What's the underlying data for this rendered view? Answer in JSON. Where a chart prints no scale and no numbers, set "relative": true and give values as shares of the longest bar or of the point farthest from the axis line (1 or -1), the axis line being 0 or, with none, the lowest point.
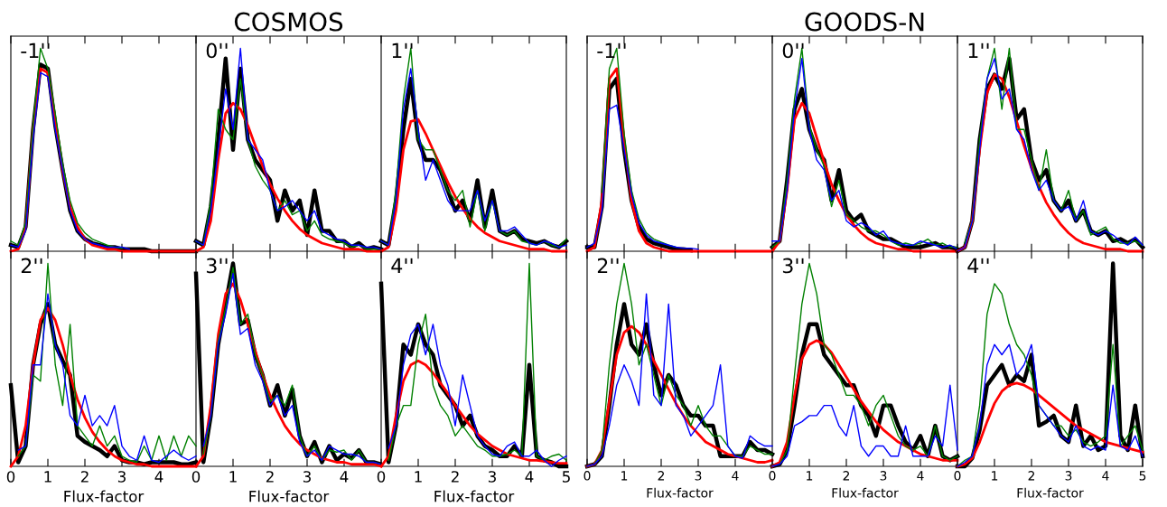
{
  "chart_data": [
    {
      "type": "line",
      "relative": true,
      "annotations": [
        "-1''"
      ],
      "tick_labels": false,
      "xlim": [
        0,
        5
      ],
      "xticks": [
        0,
        1,
        2,
        3,
        4
      ],
      "x": [
        0,
        0.2,
        0.4,
        0.6,
        0.8,
        1.0,
        1.2,
        1.4,
        1.6,
        1.8,
        2.0,
        2.2,
        2.4,
        2.6,
        2.8,
        3.0,
        3.2,
        3.4,
        3.6,
        3.8,
        4.0,
        4.2,
        4.4,
        4.6,
        4.8,
        5.0
      ],
      "series": [
        {
          "color": "#008000",
          "values": [
            0.05,
            0.03,
            0.14,
            0.62,
            1.0,
            0.9,
            0.68,
            0.43,
            0.25,
            0.14,
            0.09,
            0.06,
            0.045,
            0.03,
            0.02,
            0.015,
            null,
            null,
            null,
            null,
            null,
            null,
            null,
            null,
            null,
            null
          ]
        },
        {
          "color": "#0000ff",
          "values": [
            0.03,
            0.02,
            0.1,
            0.55,
            0.88,
            0.86,
            0.6,
            0.4,
            0.2,
            0.1,
            0.06,
            0.04,
            0.03,
            0.02,
            0.02,
            0.02,
            0.01,
            null,
            null,
            null,
            null,
            null,
            null,
            null,
            null,
            null
          ]
        },
        {
          "color": "#000000",
          "values": [
            0.03,
            0.02,
            0.12,
            0.6,
            0.92,
            0.9,
            0.62,
            0.4,
            0.2,
            0.1,
            0.06,
            0.04,
            0.03,
            0.02,
            0.02,
            0.01,
            0.01,
            0.01,
            0.01,
            0,
            0,
            0,
            0,
            0,
            0,
            0
          ]
        },
        {
          "color": "#ff0000",
          "values": [
            0,
            0.01,
            0.12,
            0.6,
            0.9,
            0.88,
            0.65,
            0.4,
            0.22,
            0.12,
            0.06,
            0.03,
            0.02,
            0.01,
            0.01,
            0,
            0,
            0,
            0,
            0,
            0,
            0,
            0,
            0,
            0,
            0
          ]
        }
      ]
    },
    {
      "type": "line",
      "relative": true,
      "title": "COSMOS",
      "annotations": [
        "0''"
      ],
      "tick_labels": false,
      "xlim": [
        0,
        5
      ],
      "xticks": [
        0,
        1,
        2,
        3,
        4
      ],
      "x": [
        0,
        0.2,
        0.4,
        0.6,
        0.8,
        1.0,
        1.2,
        1.4,
        1.6,
        1.8,
        2.0,
        2.2,
        2.4,
        2.6,
        2.8,
        3.0,
        3.2,
        3.4,
        3.6,
        3.8,
        4.0,
        4.2,
        4.4,
        4.6,
        4.8,
        5.0
      ],
      "series": [
        {
          "color": "#008000",
          "values": [
            0.05,
            0.03,
            0.25,
            0.7,
            0.6,
            0.55,
            0.85,
            0.55,
            0.42,
            0.35,
            0.3,
            0.2,
            0.25,
            0.18,
            0.2,
            0.1,
            0.15,
            0.08,
            0.06,
            0.05,
            0.04,
            0.02,
            0.03,
            0.01,
            0.01,
            0.01
          ]
        },
        {
          "color": "#0000ff",
          "values": [
            0.05,
            0.03,
            0.2,
            0.5,
            0.8,
            0.6,
            1.0,
            0.55,
            0.5,
            0.45,
            0.3,
            0.2,
            0.22,
            0.25,
            0.2,
            0.15,
            0.2,
            0.1,
            0.08,
            0.06,
            0.05,
            0.03,
            0.03,
            0.02,
            0.02,
            0.01
          ]
        },
        {
          "color": "#000000",
          "values": [
            0.05,
            0.03,
            0.22,
            0.55,
            0.95,
            0.5,
            0.9,
            0.55,
            0.45,
            0.4,
            0.35,
            0.15,
            0.3,
            0.2,
            0.25,
            0.08,
            0.3,
            0.1,
            0.1,
            0.05,
            0.05,
            0.02,
            0.04,
            0.01,
            0.02,
            0.01
          ]
        },
        {
          "color": "#ff0000",
          "values": [
            0,
            0.02,
            0.15,
            0.45,
            0.68,
            0.73,
            0.7,
            0.62,
            0.52,
            0.42,
            0.33,
            0.26,
            0.2,
            0.15,
            0.11,
            0.08,
            0.06,
            0.04,
            0.03,
            0.02,
            0.01,
            0.01,
            0.01,
            0,
            0,
            0
          ]
        }
      ]
    },
    {
      "type": "line",
      "relative": true,
      "annotations": [
        "1''"
      ],
      "tick_labels": false,
      "xlim": [
        0,
        5
      ],
      "xticks": [
        0,
        1,
        2,
        3,
        4,
        5
      ],
      "x": [
        0,
        0.2,
        0.4,
        0.6,
        0.8,
        1.0,
        1.2,
        1.4,
        1.6,
        1.8,
        2.0,
        2.2,
        2.4,
        2.6,
        2.8,
        3.0,
        3.2,
        3.4,
        3.6,
        3.8,
        4.0,
        4.2,
        4.4,
        4.6,
        4.8,
        5.0
      ],
      "series": [
        {
          "color": "#008000",
          "values": [
            0.05,
            0.03,
            0.3,
            0.75,
            1.0,
            0.55,
            0.5,
            0.5,
            0.4,
            0.3,
            0.25,
            0.3,
            0.12,
            0.3,
            0.1,
            0.25,
            0.1,
            0.08,
            0.1,
            0.05,
            0.04,
            0.03,
            0.05,
            0.03,
            0.02,
            0.06
          ]
        },
        {
          "color": "#0000ff",
          "values": [
            0.05,
            0.03,
            0.25,
            0.7,
            0.9,
            0.6,
            0.35,
            0.45,
            0.35,
            0.25,
            0.2,
            0.2,
            0.2,
            0.3,
            0.15,
            0.25,
            0.1,
            0.1,
            0.12,
            0.08,
            0.04,
            0.03,
            0.05,
            0.04,
            0.02,
            0.03
          ]
        },
        {
          "color": "#000000",
          "values": [
            0.05,
            0.03,
            0.25,
            0.6,
            0.85,
            0.55,
            0.45,
            0.45,
            0.4,
            0.3,
            0.2,
            0.25,
            0.15,
            0.35,
            0.12,
            0.3,
            0.1,
            0.08,
            0.1,
            0.06,
            0.05,
            0.04,
            0.05,
            0.03,
            0.02,
            0.05
          ]
        },
        {
          "color": "#ff0000",
          "values": [
            0,
            0.02,
            0.2,
            0.5,
            0.64,
            0.65,
            0.58,
            0.5,
            0.42,
            0.34,
            0.27,
            0.21,
            0.16,
            0.12,
            0.09,
            0.07,
            0.05,
            0.04,
            0.03,
            0.02,
            0.01,
            0.01,
            0.01,
            0,
            0,
            0
          ]
        }
      ]
    },
    {
      "type": "line",
      "relative": true,
      "annotations": [
        "2''"
      ],
      "tick_labels": "x",
      "xlabel": "Flux-factor",
      "xlim": [
        0,
        5
      ],
      "xticks": [
        0,
        1,
        2,
        3,
        4
      ],
      "x": [
        0,
        0.2,
        0.4,
        0.6,
        0.8,
        1.0,
        1.2,
        1.4,
        1.6,
        1.8,
        2.0,
        2.2,
        2.4,
        2.6,
        2.8,
        3.0,
        3.2,
        3.4,
        3.6,
        3.8,
        4.0,
        4.2,
        4.4,
        4.6,
        4.8,
        5.0
      ],
      "series": [
        {
          "color": "#008000",
          "values": [
            null,
            0.05,
            0.1,
            0.45,
            0.42,
            1.0,
            0.5,
            0.3,
            0.7,
            0.2,
            0.15,
            0.1,
            0.2,
            0.1,
            0.15,
            0.05,
            0.03,
            0.02,
            0.1,
            0.03,
            0.15,
            0.03,
            0.15,
            0.05,
            0.15,
            0.1
          ]
        },
        {
          "color": "#0000ff",
          "values": [
            null,
            0.08,
            0.1,
            0.5,
            0.5,
            0.85,
            0.6,
            0.5,
            0.25,
            0.2,
            0.35,
            0.2,
            0.25,
            0.2,
            0.3,
            0.1,
            0.05,
            0.03,
            0.15,
            0.03,
            0.02,
            0.05,
            0.08,
            0.05,
            0.03,
            0.05
          ]
        },
        {
          "color": "#000000",
          "values": [
            0.4,
            0.02,
            0.1,
            0.5,
            0.7,
            0.8,
            0.6,
            0.52,
            0.45,
            0.15,
            0.12,
            0.1,
            0.08,
            0.05,
            0.1,
            0.03,
            0.02,
            0.02,
            0.01,
            0.02,
            0.02,
            0.02,
            0.02,
            0.01,
            0.01,
            0.02
          ]
        },
        {
          "color": "#ff0000",
          "values": [
            0,
            0.05,
            0.2,
            0.5,
            0.72,
            0.78,
            0.72,
            0.6,
            0.45,
            0.33,
            0.24,
            0.17,
            0.12,
            0.08,
            0.05,
            0.03,
            0.02,
            0.01,
            0.01,
            0,
            0,
            0,
            0,
            0,
            0,
            0
          ]
        }
      ]
    },
    {
      "type": "line",
      "relative": true,
      "annotations": [
        "3''"
      ],
      "tick_labels": "x",
      "xlabel": "Flux-factor",
      "xlim": [
        0,
        5
      ],
      "xticks": [
        0,
        1,
        2,
        3,
        4
      ],
      "x": [
        0,
        0.2,
        0.4,
        0.6,
        0.8,
        1.0,
        1.2,
        1.4,
        1.6,
        1.8,
        2.0,
        2.2,
        2.4,
        2.6,
        2.8,
        3.0,
        3.2,
        3.4,
        3.6,
        3.8,
        4.0,
        4.2,
        4.4,
        4.6,
        4.8,
        5.0
      ],
      "series": [
        {
          "color": "#008000",
          "values": [
            null,
            0.06,
            0.25,
            0.62,
            0.78,
            0.98,
            0.7,
            0.75,
            0.55,
            0.45,
            0.32,
            0.35,
            0.3,
            0.4,
            0.15,
            0.05,
            0.1,
            0.03,
            0.08,
            0.07,
            0.08,
            0.03,
            0.08,
            0.02,
            0.02,
            0.01
          ]
        },
        {
          "color": "#0000ff",
          "values": [
            null,
            0.1,
            0.25,
            0.6,
            0.75,
            0.95,
            0.65,
            0.68,
            0.5,
            0.42,
            0.3,
            0.35,
            0.25,
            0.3,
            0.12,
            0.05,
            0.08,
            0.03,
            0.1,
            0.08,
            0.06,
            0.06,
            0.05,
            0.02,
            0.02,
            0.01
          ]
        },
        {
          "color": "#000000",
          "values": [
            0.95,
            0.02,
            0.25,
            0.6,
            0.8,
            1.0,
            0.7,
            0.72,
            0.55,
            0.45,
            0.3,
            0.4,
            0.25,
            0.38,
            0.15,
            0.05,
            0.12,
            0.02,
            0.1,
            0.03,
            0.06,
            0.04,
            0.08,
            0.02,
            0.02,
            0.01
          ]
        },
        {
          "color": "#ff0000",
          "values": [
            0,
            0.05,
            0.3,
            0.65,
            0.85,
            0.9,
            0.82,
            0.7,
            0.57,
            0.45,
            0.35,
            0.27,
            0.2,
            0.15,
            0.11,
            0.08,
            0.06,
            0.04,
            0.03,
            0.02,
            0.02,
            0.01,
            0.01,
            0.01,
            0.01,
            0
          ]
        }
      ]
    },
    {
      "type": "line",
      "relative": true,
      "annotations": [
        "4''"
      ],
      "tick_labels": "x",
      "xlabel": "Flux-factor",
      "xlim": [
        0,
        5
      ],
      "xticks": [
        0,
        1,
        2,
        3,
        4,
        5
      ],
      "x": [
        0,
        0.2,
        0.4,
        0.6,
        0.8,
        1.0,
        1.2,
        1.4,
        1.6,
        1.8,
        2.0,
        2.2,
        2.4,
        2.6,
        2.8,
        3.0,
        3.2,
        3.4,
        3.6,
        3.8,
        4.0,
        4.2,
        4.4,
        4.6,
        4.8,
        5.0
      ],
      "series": [
        {
          "color": "#008000",
          "values": [
            null,
            0.03,
            0.2,
            0.3,
            0.3,
            0.6,
            0.75,
            0.4,
            0.3,
            0.25,
            0.15,
            0.2,
            0.15,
            0.1,
            0.08,
            0.05,
            0.05,
            0.06,
            0.08,
            0.05,
            1.0,
            0.05,
            0.03,
            0.05,
            0.06,
            0.03
          ]
        },
        {
          "color": "#0000ff",
          "values": [
            null,
            0.09,
            0.2,
            0.5,
            0.65,
            0.7,
            0.55,
            0.7,
            0.5,
            0.4,
            0.2,
            0.45,
            0.3,
            0.15,
            0.1,
            0.06,
            0.05,
            0.1,
            0.12,
            0.05,
            0.05,
            0.08,
            0.03,
            0.0,
            0.03,
            0.05
          ]
        },
        {
          "color": "#000000",
          "values": [
            0.9,
            0.02,
            0.2,
            0.6,
            0.55,
            0.7,
            0.6,
            0.55,
            0.4,
            0.35,
            0.3,
            0.2,
            0.25,
            0.15,
            0.1,
            0.08,
            0.05,
            0.05,
            0.1,
            0.05,
            0.5,
            0.05,
            0.03,
            0.02,
            0.0,
            0.0
          ]
        },
        {
          "color": "#ff0000",
          "values": [
            0,
            0.05,
            0.25,
            0.42,
            0.5,
            0.52,
            0.5,
            0.46,
            0.41,
            0.36,
            0.3,
            0.25,
            0.2,
            0.16,
            0.13,
            0.1,
            0.08,
            0.06,
            0.05,
            0.04,
            0.03,
            0.03,
            0.025,
            0.02,
            0.015,
            0.015
          ]
        }
      ]
    },
    {
      "type": "line",
      "relative": true,
      "annotations": [
        "-1''"
      ],
      "tick_labels": false,
      "xlim": [
        0,
        5
      ],
      "xticks": [
        0,
        1,
        2,
        3,
        4
      ],
      "x": [
        0,
        0.2,
        0.4,
        0.6,
        0.8,
        1.0,
        1.2,
        1.4,
        1.6,
        1.8,
        2.0,
        2.2,
        2.4,
        2.6,
        2.8,
        3.0,
        3.2,
        3.4,
        3.6,
        3.8,
        4.0,
        4.2,
        4.4,
        4.6,
        4.8,
        5.0
      ],
      "series": [
        {
          "color": "#008000",
          "values": [
            null,
            null,
            0.29,
            0.9,
            1.0,
            0.58,
            0.3,
            0.16,
            0.09,
            0.06,
            0.045,
            0.03,
            0.02,
            null,
            null,
            null,
            null,
            null,
            null,
            null,
            null,
            null,
            null,
            null,
            null,
            null
          ]
        },
        {
          "color": "#0000ff",
          "values": [
            0.02,
            0.04,
            0.2,
            0.7,
            0.72,
            0.5,
            0.28,
            0.14,
            0.08,
            0.05,
            0.04,
            0.03,
            0.02,
            0.015,
            0.015,
            0.01,
            null,
            null,
            null,
            null,
            null,
            null,
            null,
            null,
            null,
            null
          ]
        },
        {
          "color": "#000000",
          "values": [
            0.02,
            0.02,
            0.22,
            0.8,
            0.85,
            0.5,
            0.25,
            0.12,
            0.06,
            0.04,
            0.03,
            0.02,
            0.01,
            0.01,
            0.005,
            null,
            null,
            null,
            null,
            null,
            null,
            null,
            null,
            null,
            null,
            null
          ]
        },
        {
          "color": "#ff0000",
          "values": [
            0,
            0.02,
            0.25,
            0.85,
            0.9,
            0.55,
            0.25,
            0.1,
            0.04,
            0.02,
            0.01,
            0,
            0,
            0,
            0,
            0,
            0,
            0,
            0,
            0,
            0,
            0,
            0,
            0,
            0,
            0
          ]
        }
      ]
    },
    {
      "type": "line",
      "relative": true,
      "title": "GOODS-N",
      "annotations": [
        "0''"
      ],
      "tick_labels": false,
      "xlim": [
        0,
        5
      ],
      "xticks": [
        0,
        1,
        2,
        3,
        4
      ],
      "x": [
        0,
        0.2,
        0.4,
        0.6,
        0.8,
        1.0,
        1.2,
        1.4,
        1.6,
        1.8,
        2.0,
        2.2,
        2.4,
        2.6,
        2.8,
        3.0,
        3.2,
        3.4,
        3.6,
        3.8,
        4.0,
        4.2,
        4.4,
        4.6,
        4.8,
        5.0
      ],
      "series": [
        {
          "color": "#008000",
          "values": [
            0.02,
            0.05,
            0.35,
            0.75,
            1.0,
            0.62,
            0.5,
            0.42,
            0.22,
            0.35,
            0.18,
            0.15,
            0.12,
            0.1,
            0.1,
            0.08,
            0.05,
            0.03,
            0.04,
            0.03,
            0.04,
            0.06,
            0.03,
            0.04,
            0.02,
            0.02
          ]
        },
        {
          "color": "#0000ff",
          "values": [
            0.05,
            0.05,
            0.3,
            0.7,
            0.95,
            0.6,
            0.45,
            0.4,
            0.25,
            0.3,
            0.15,
            0.12,
            0.14,
            0.12,
            0.08,
            0.1,
            0.05,
            0.04,
            0.03,
            0.03,
            0.05,
            0.04,
            0.03,
            0.02,
            0.03,
            0.01
          ]
        },
        {
          "color": "#000000",
          "values": [
            0.02,
            0.05,
            0.35,
            0.7,
            0.8,
            0.6,
            0.5,
            0.45,
            0.25,
            0.4,
            0.2,
            0.15,
            0.18,
            0.1,
            0.08,
            0.06,
            0.06,
            0.04,
            0.02,
            0.02,
            0.02,
            0.03,
            0.04,
            0.02,
            0.02,
            0.01
          ]
        },
        {
          "color": "#ff0000",
          "values": [
            0,
            0.05,
            0.3,
            0.65,
            0.73,
            0.68,
            0.56,
            0.44,
            0.33,
            0.25,
            0.18,
            0.13,
            0.09,
            0.06,
            0.04,
            0.03,
            0.02,
            0.01,
            0.01,
            0,
            0,
            0,
            0,
            0,
            0,
            0
          ]
        }
      ]
    },
    {
      "type": "line",
      "relative": true,
      "annotations": [
        "1''"
      ],
      "tick_labels": false,
      "xlim": [
        0,
        5
      ],
      "xticks": [
        0,
        1,
        2,
        3,
        4,
        5
      ],
      "x": [
        0,
        0.2,
        0.4,
        0.6,
        0.8,
        1.0,
        1.2,
        1.4,
        1.6,
        1.8,
        2.0,
        2.2,
        2.4,
        2.6,
        2.8,
        3.0,
        3.2,
        3.4,
        3.6,
        3.8,
        4.0,
        4.2,
        4.4,
        4.6,
        4.8,
        5.0
      ],
      "series": [
        {
          "color": "#008000",
          "values": [
            null,
            0.04,
            0.15,
            0.55,
            0.85,
            1.0,
            0.7,
            1.0,
            0.6,
            0.6,
            0.45,
            0.3,
            0.5,
            0.25,
            0.2,
            0.3,
            0.15,
            0.2,
            0.08,
            0.1,
            0.12,
            0.06,
            0.04,
            0.04,
            0.05,
            0.03
          ]
        },
        {
          "color": "#0000ff",
          "values": [
            0,
            0.02,
            0.15,
            0.5,
            0.85,
            0.95,
            0.75,
            0.8,
            0.6,
            0.55,
            0.4,
            0.3,
            0.35,
            0.25,
            0.2,
            0.22,
            0.15,
            0.25,
            0.1,
            0.08,
            0.1,
            0.08,
            0.05,
            0.03,
            0.07,
            0.03
          ]
        },
        {
          "color": "#000000",
          "values": [
            0,
            0.02,
            0.15,
            0.55,
            0.8,
            0.87,
            0.8,
            0.95,
            0.65,
            0.7,
            0.45,
            0.35,
            0.4,
            0.25,
            0.2,
            0.25,
            0.15,
            0.2,
            0.1,
            0.08,
            0.1,
            0.05,
            0.06,
            0.04,
            0.06,
            0.02
          ]
        },
        {
          "color": "#ff0000",
          "values": [
            0,
            0.02,
            0.15,
            0.5,
            0.78,
            0.87,
            0.85,
            0.76,
            0.64,
            0.52,
            0.41,
            0.32,
            0.24,
            0.18,
            0.13,
            0.09,
            0.06,
            0.04,
            0.03,
            0.02,
            0.01,
            0.01,
            0.01,
            0,
            0,
            0
          ]
        }
      ]
    },
    {
      "type": "line",
      "relative": true,
      "annotations": [
        "2''"
      ],
      "tick_labels": "x",
      "xlabel": "Flux-factor",
      "xlim": [
        0,
        5
      ],
      "xticks": [
        0,
        1,
        2,
        3,
        4
      ],
      "x": [
        0,
        0.2,
        0.4,
        0.6,
        0.8,
        1.0,
        1.2,
        1.4,
        1.6,
        1.8,
        2.0,
        2.2,
        2.4,
        2.6,
        2.8,
        3.0,
        3.2,
        3.4,
        3.6,
        3.8,
        4.0,
        4.2,
        4.4,
        4.6,
        4.8,
        5.0
      ],
      "series": [
        {
          "color": "#008000",
          "values": [
            0,
            0.01,
            0.08,
            0.5,
            0.8,
            1.0,
            0.8,
            0.5,
            0.6,
            0.45,
            0.3,
            0.45,
            0.35,
            0.3,
            0.2,
            0.3,
            0.2,
            0.15,
            0.15,
            0.1,
            0.05,
            0.05,
            0.1,
            0.08,
            0.06,
            0.06
          ]
        },
        {
          "color": "#0000ff",
          "values": [
            0,
            0.01,
            0.05,
            0.2,
            0.4,
            0.5,
            0.42,
            0.3,
            0.85,
            0.35,
            0.3,
            0.8,
            0.3,
            0.25,
            0.15,
            0.2,
            0.25,
            0.3,
            0.5,
            0.1,
            0.05,
            0.04,
            0.15,
            0.12,
            0.1,
            0.1
          ]
        },
        {
          "color": "#000000",
          "values": [
            0,
            0.01,
            0.05,
            0.3,
            0.6,
            0.8,
            0.6,
            0.55,
            0.7,
            0.5,
            0.35,
            0.45,
            0.4,
            0.3,
            0.25,
            0.25,
            0.2,
            0.2,
            0.05,
            0.05,
            0.05,
            0.05,
            0.12,
            0.08,
            0.08,
            0.06
          ]
        },
        {
          "color": "#ff0000",
          "values": [
            0,
            0.01,
            0.08,
            0.32,
            0.55,
            0.66,
            0.69,
            0.66,
            0.6,
            0.52,
            0.45,
            0.38,
            0.31,
            0.25,
            0.2,
            0.16,
            0.12,
            0.1,
            0.08,
            0.06,
            0.05,
            0.04,
            0.03,
            0.02,
            0.02,
            0.03
          ]
        }
      ]
    },
    {
      "type": "line",
      "relative": true,
      "annotations": [
        "3''"
      ],
      "tick_labels": "x",
      "xlabel": "Flux-factor",
      "xlim": [
        0,
        5
      ],
      "xticks": [
        0,
        1,
        2,
        3,
        4
      ],
      "x": [
        0,
        0.2,
        0.4,
        0.6,
        0.8,
        1.0,
        1.2,
        1.4,
        1.6,
        1.8,
        2.0,
        2.2,
        2.4,
        2.6,
        2.8,
        3.0,
        3.2,
        3.4,
        3.6,
        3.8,
        4.0,
        4.2,
        4.4,
        4.6,
        4.8,
        5.0
      ],
      "series": [
        {
          "color": "#008000",
          "values": [
            0,
            0.01,
            0.08,
            0.45,
            0.8,
            1.0,
            0.85,
            0.6,
            0.55,
            0.45,
            0.35,
            0.35,
            0.3,
            0.2,
            0.3,
            0.35,
            0.25,
            0.15,
            0.1,
            0.08,
            0.1,
            0.05,
            0.2,
            0.05,
            0.03,
            0.05
          ]
        },
        {
          "color": "#0000ff",
          "values": [
            0,
            0.01,
            0.05,
            0.2,
            0.22,
            0.25,
            0.25,
            0.3,
            0.3,
            0.2,
            0.15,
            0.3,
            0.1,
            0.05,
            0.1,
            0.1,
            0.05,
            0.05,
            0.2,
            0.05,
            0.05,
            0.05,
            0.15,
            0.1,
            0.4,
            0.08
          ]
        },
        {
          "color": "#000000",
          "values": [
            0,
            0.01,
            0.08,
            0.3,
            0.55,
            0.7,
            0.7,
            0.55,
            0.5,
            0.45,
            0.4,
            0.4,
            0.3,
            0.25,
            0.15,
            0.3,
            0.3,
            0.2,
            0.12,
            0.08,
            0.15,
            0.05,
            0.2,
            0.05,
            0.03,
            0.05
          ]
        },
        {
          "color": "#ff0000",
          "values": [
            0,
            0.02,
            0.12,
            0.35,
            0.53,
            0.6,
            0.62,
            0.6,
            0.56,
            0.5,
            0.44,
            0.38,
            0.32,
            0.27,
            0.22,
            0.18,
            0.15,
            0.12,
            0.1,
            0.08,
            0.06,
            0.05,
            0.04,
            0.03,
            0.03,
            0.03
          ]
        }
      ]
    },
    {
      "type": "line",
      "relative": true,
      "annotations": [
        "4''"
      ],
      "tick_labels": "x",
      "xlabel": "Flux-factor",
      "xlim": [
        0,
        5
      ],
      "xticks": [
        0,
        1,
        2,
        3,
        4,
        5
      ],
      "x": [
        0,
        0.2,
        0.4,
        0.6,
        0.8,
        1.0,
        1.2,
        1.4,
        1.6,
        1.8,
        2.0,
        2.2,
        2.4,
        2.6,
        2.8,
        3.0,
        3.2,
        3.4,
        3.6,
        3.8,
        4.0,
        4.2,
        4.4,
        4.6,
        4.8,
        5.0
      ],
      "series": [
        {
          "color": "#008000",
          "values": [
            0,
            0.03,
            0.05,
            0.3,
            0.75,
            0.9,
            0.85,
            0.7,
            0.6,
            0.55,
            0.45,
            0.3,
            0.25,
            0.2,
            0.2,
            0.15,
            0.18,
            0.12,
            0.1,
            0.12,
            0.15,
            0.6,
            0.1,
            0.15,
            0.2,
            0.08
          ]
        },
        {
          "color": "#0000ff",
          "values": [
            0,
            0.02,
            0.05,
            0.2,
            0.5,
            0.6,
            0.55,
            0.6,
            0.45,
            0.5,
            0.6,
            0.3,
            0.25,
            0.2,
            0.15,
            0.12,
            0.2,
            0.1,
            0.08,
            0.1,
            0.08,
            0.4,
            0.1,
            0.08,
            0.15,
            0.05
          ]
        },
        {
          "color": "#000000",
          "values": [
            0,
            0.0,
            0.04,
            0.18,
            0.4,
            0.45,
            0.5,
            0.4,
            0.45,
            0.42,
            0.55,
            0.2,
            0.22,
            0.25,
            0.15,
            0.12,
            0.3,
            0.1,
            0.15,
            0.08,
            0.1,
            1.0,
            0.15,
            0.08,
            0.3,
            0.05
          ]
        },
        {
          "color": "#ff0000",
          "values": [
            0,
            0.01,
            0.04,
            0.12,
            0.22,
            0.31,
            0.37,
            0.4,
            0.41,
            0.4,
            0.38,
            0.35,
            0.32,
            0.29,
            0.26,
            0.23,
            0.2,
            0.18,
            0.16,
            0.14,
            0.12,
            0.11,
            0.1,
            0.09,
            0.08,
            0.07
          ]
        }
      ]
    }
  ]
}
